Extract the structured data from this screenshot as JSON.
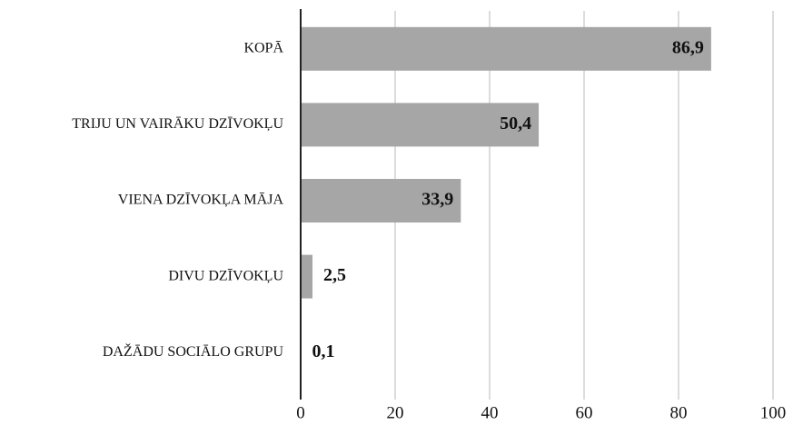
{
  "chart_data": {
    "type": "barh",
    "categories": [
      "KOPĀ",
      "TRIJU UN VAIRĀKU DZĪVOKĻU",
      "VIENA DZĪVOKĻA MĀJA",
      "DIVU DZĪVOKĻU",
      "DAŽĀDU SOCIĀLO GRUPU"
    ],
    "values": [
      86.9,
      50.4,
      33.9,
      2.5,
      0.1
    ],
    "value_labels": [
      "86,9",
      "50,4",
      "33,9",
      "2,5",
      "0,1"
    ],
    "color": "#a6a6a6",
    "xlim": [
      0,
      100
    ],
    "xticks": [
      0,
      20,
      40,
      60,
      80,
      100
    ],
    "grid": true
  }
}
